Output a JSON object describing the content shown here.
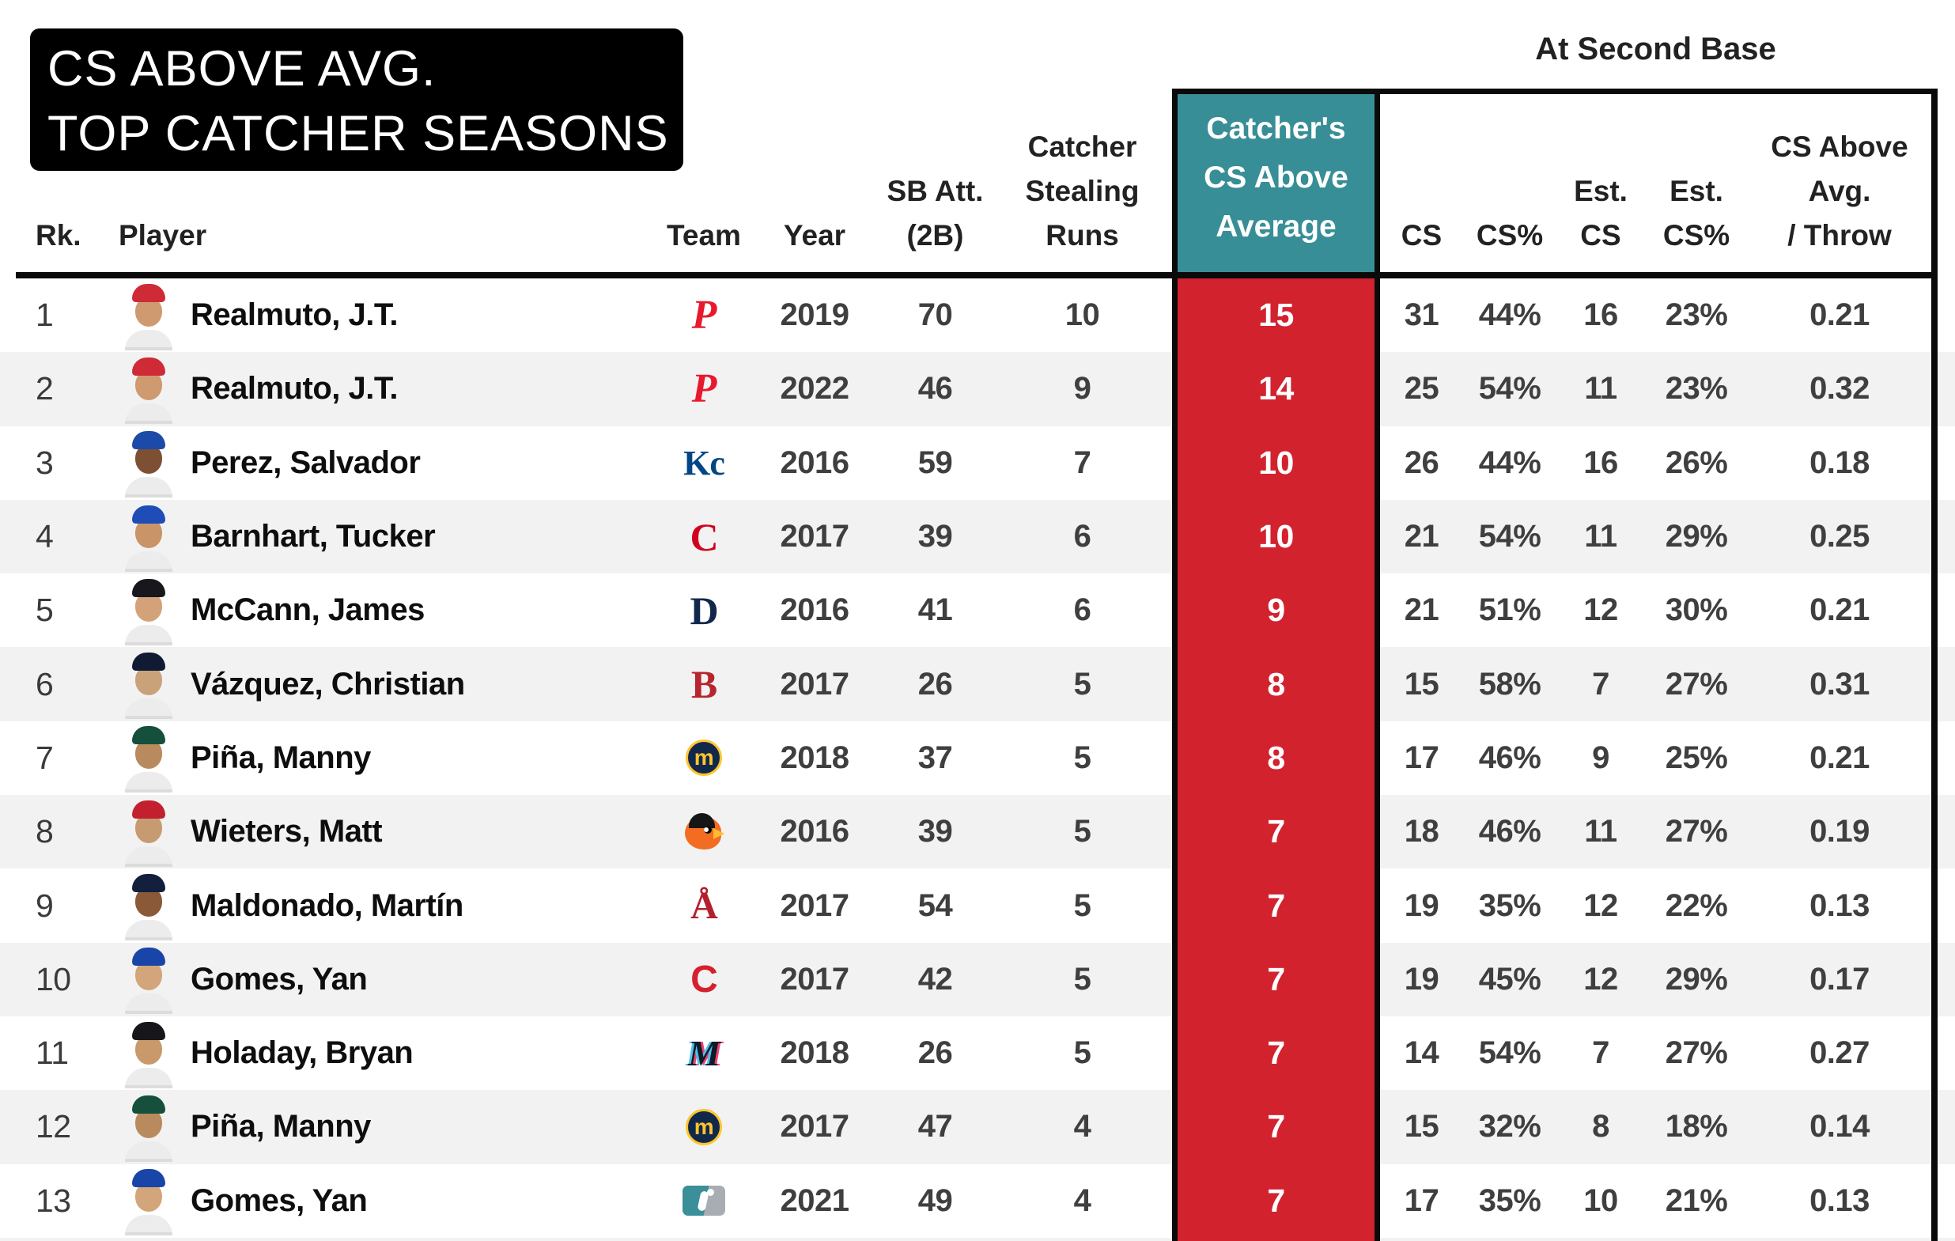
{
  "title": {
    "line1": "CS ABOVE AVG.",
    "line2": "TOP CATCHER SEASONS"
  },
  "header": {
    "group_label": "At Second Base",
    "rank": "Rk.",
    "player": "Player",
    "team": "Team",
    "year": "Year",
    "sb_att": [
      "SB Att.",
      "(2B)"
    ],
    "stealing_runs": [
      "Catcher",
      "Stealing",
      "Runs"
    ],
    "cs_above_avg": [
      "Catcher's",
      "CS Above",
      "Average"
    ],
    "cs": "CS",
    "cs_pct": "CS%",
    "est_cs": [
      "Est.",
      "CS"
    ],
    "est_cs_pct": [
      "Est.",
      "CS%"
    ],
    "cs_above_per_throw": [
      "CS Above",
      "Avg.",
      "/ Throw"
    ]
  },
  "colors": {
    "highlight_header_teal": "#388e96",
    "highlight_column_red": "#d2222e",
    "row_stripe": "#f2f2f2",
    "border_black": "#0a0a0a"
  },
  "rows": [
    {
      "rank": "1",
      "player": "Realmuto, J.T.",
      "team": "phillies",
      "year": "2019",
      "sb_att": "70",
      "stealing_runs": "10",
      "cs_above_avg": "15",
      "cs": "31",
      "cs_pct": "44%",
      "est_cs": "16",
      "est_cs_pct": "23%",
      "cs_above_per_throw": "0.21",
      "avatar": {
        "cap": "#cf2b36",
        "skin": "#cf9a70"
      },
      "logo": {
        "type": "text",
        "text": "P",
        "color": "#e8192d",
        "font": "serif",
        "italic": true,
        "size": 52
      }
    },
    {
      "rank": "2",
      "player": "Realmuto, J.T.",
      "team": "phillies",
      "year": "2022",
      "sb_att": "46",
      "stealing_runs": "9",
      "cs_above_avg": "14",
      "cs": "25",
      "cs_pct": "54%",
      "est_cs": "11",
      "est_cs_pct": "23%",
      "cs_above_per_throw": "0.32",
      "avatar": {
        "cap": "#cf2b36",
        "skin": "#cf9a70"
      },
      "logo": {
        "type": "text",
        "text": "P",
        "color": "#e8192d",
        "font": "serif",
        "italic": true,
        "size": 52
      }
    },
    {
      "rank": "3",
      "player": "Perez, Salvador",
      "team": "royals",
      "year": "2016",
      "sb_att": "59",
      "stealing_runs": "7",
      "cs_above_avg": "10",
      "cs": "26",
      "cs_pct": "44%",
      "est_cs": "16",
      "est_cs_pct": "26%",
      "cs_above_per_throw": "0.18",
      "avatar": {
        "cap": "#1b4aa8",
        "skin": "#7d4f33"
      },
      "logo": {
        "type": "text",
        "text": "Kc",
        "color": "#004687",
        "font": "serif",
        "italic": false,
        "size": 44
      }
    },
    {
      "rank": "4",
      "player": "Barnhart, Tucker",
      "team": "reds",
      "year": "2017",
      "sb_att": "39",
      "stealing_runs": "6",
      "cs_above_avg": "10",
      "cs": "21",
      "cs_pct": "54%",
      "est_cs": "11",
      "est_cs_pct": "29%",
      "cs_above_per_throw": "0.25",
      "avatar": {
        "cap": "#1f4db8",
        "skin": "#c89468"
      },
      "logo": {
        "type": "text",
        "text": "C",
        "color": "#d0021f",
        "font": "serif",
        "italic": false,
        "size": 50
      }
    },
    {
      "rank": "5",
      "player": "McCann, James",
      "team": "tigers",
      "year": "2016",
      "sb_att": "41",
      "stealing_runs": "6",
      "cs_above_avg": "9",
      "cs": "21",
      "cs_pct": "51%",
      "est_cs": "12",
      "est_cs_pct": "30%",
      "cs_above_per_throw": "0.21",
      "avatar": {
        "cap": "#18181c",
        "skin": "#d3a278"
      },
      "logo": {
        "type": "text",
        "text": "D",
        "color": "#12284b",
        "font": "serif",
        "italic": false,
        "size": 50
      }
    },
    {
      "rank": "6",
      "player": "Vázquez, Christian",
      "team": "red-sox",
      "year": "2017",
      "sb_att": "26",
      "stealing_runs": "5",
      "cs_above_avg": "8",
      "cs": "15",
      "cs_pct": "58%",
      "est_cs": "7",
      "est_cs_pct": "27%",
      "cs_above_per_throw": "0.31",
      "avatar": {
        "cap": "#101b33",
        "skin": "#caa27a"
      },
      "logo": {
        "type": "text",
        "text": "B",
        "color": "#b5262e",
        "font": "serif",
        "italic": false,
        "size": 50
      }
    },
    {
      "rank": "7",
      "player": "Piña, Manny",
      "team": "brewers",
      "year": "2018",
      "sb_att": "37",
      "stealing_runs": "5",
      "cs_above_avg": "8",
      "cs": "17",
      "cs_pct": "46%",
      "est_cs": "9",
      "est_cs_pct": "25%",
      "cs_above_per_throw": "0.21",
      "avatar": {
        "cap": "#14503c",
        "skin": "#b98a5e"
      },
      "logo": {
        "type": "circle",
        "text": "m",
        "color": "#ffc52f",
        "bg": "#12284b"
      }
    },
    {
      "rank": "8",
      "player": "Wieters, Matt",
      "team": "orioles",
      "year": "2016",
      "sb_att": "39",
      "stealing_runs": "5",
      "cs_above_avg": "7",
      "cs": "18",
      "cs_pct": "46%",
      "est_cs": "11",
      "est_cs_pct": "27%",
      "cs_above_per_throw": "0.19",
      "avatar": {
        "cap": "#c3202f",
        "skin": "#c79b72"
      },
      "logo": {
        "type": "bird"
      }
    },
    {
      "rank": "9",
      "player": "Maldonado, Martín",
      "team": "angels",
      "year": "2017",
      "sb_att": "54",
      "stealing_runs": "5",
      "cs_above_avg": "7",
      "cs": "19",
      "cs_pct": "35%",
      "est_cs": "12",
      "est_cs_pct": "22%",
      "cs_above_per_throw": "0.13",
      "avatar": {
        "cap": "#121f3d",
        "skin": "#8a5a38"
      },
      "logo": {
        "type": "text",
        "text": "Å",
        "color": "#b3202c",
        "font": "serif",
        "italic": false,
        "size": 48
      }
    },
    {
      "rank": "10",
      "player": "Gomes, Yan",
      "team": "indians",
      "year": "2017",
      "sb_att": "42",
      "stealing_runs": "5",
      "cs_above_avg": "7",
      "cs": "19",
      "cs_pct": "45%",
      "est_cs": "12",
      "est_cs_pct": "29%",
      "cs_above_per_throw": "0.17",
      "avatar": {
        "cap": "#1a45a8",
        "skin": "#d2a57a"
      },
      "logo": {
        "type": "text",
        "text": "C",
        "color": "#d6202e",
        "font": "sans",
        "italic": false,
        "size": 48
      }
    },
    {
      "rank": "11",
      "player": "Holaday, Bryan",
      "team": "marlins",
      "year": "2018",
      "sb_att": "26",
      "stealing_runs": "5",
      "cs_above_avg": "7",
      "cs": "14",
      "cs_pct": "54%",
      "est_cs": "7",
      "est_cs_pct": "27%",
      "cs_above_per_throw": "0.27",
      "avatar": {
        "cap": "#17171b",
        "skin": "#c9996b"
      },
      "logo": {
        "type": "text",
        "text": "M",
        "color": "#0d1b2a",
        "font": "serif",
        "italic": true,
        "size": 46,
        "shadow": "-3px 0 #4fc1e9, 3px 0 #ef426f"
      }
    },
    {
      "rank": "12",
      "player": "Piña, Manny",
      "team": "brewers",
      "year": "2017",
      "sb_att": "47",
      "stealing_runs": "4",
      "cs_above_avg": "7",
      "cs": "15",
      "cs_pct": "32%",
      "est_cs": "8",
      "est_cs_pct": "18%",
      "cs_above_per_throw": "0.14",
      "avatar": {
        "cap": "#14503c",
        "skin": "#b98a5e"
      },
      "logo": {
        "type": "circle",
        "text": "m",
        "color": "#ffc52f",
        "bg": "#12284b"
      }
    },
    {
      "rank": "13",
      "player": "Gomes, Yan",
      "team": "mlb",
      "year": "2021",
      "sb_att": "49",
      "stealing_runs": "4",
      "cs_above_avg": "7",
      "cs": "17",
      "cs_pct": "35%",
      "est_cs": "10",
      "est_cs_pct": "21%",
      "cs_above_per_throw": "0.13",
      "avatar": {
        "cap": "#1a45a8",
        "skin": "#d2a57a"
      },
      "logo": {
        "type": "mlb"
      }
    }
  ]
}
